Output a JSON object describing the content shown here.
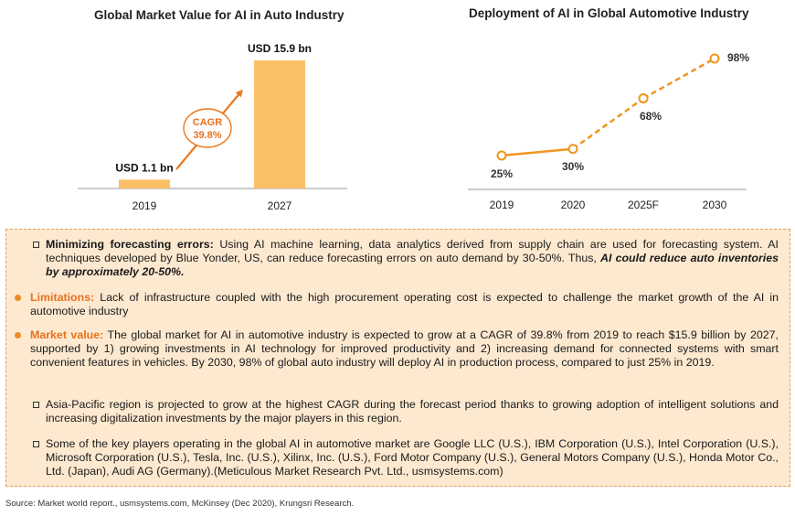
{
  "chart_data": [
    {
      "type": "bar",
      "title": "Global Market Value for AI in Auto Industry",
      "categories": [
        "2019",
        "2027"
      ],
      "values": [
        1.1,
        15.9
      ],
      "value_labels": [
        "USD 1.1 bn",
        "USD 15.9 bn"
      ],
      "unit": "USD bn",
      "annotation": {
        "line1": "CAGR",
        "line2": "39.8%"
      },
      "bar_color": "#fbbf66",
      "ylim": [
        0,
        16.5
      ]
    },
    {
      "type": "line",
      "title": "Deployment of AI in Global Automotive Industry",
      "categories": [
        "2019",
        "2020",
        "2025F",
        "2030"
      ],
      "values": [
        25,
        30,
        68,
        98
      ],
      "value_labels": [
        "25%",
        "30%",
        "68%",
        "98%"
      ],
      "unit": "%",
      "line_color": "#f0951e",
      "solid_segment_until_index": 1,
      "ylim": [
        0,
        100
      ]
    }
  ],
  "info": {
    "b1_label": "Minimizing forecasting errors:",
    "b1_text": " Using AI machine learning, data analytics derived from supply chain are used for forecasting system. AI techniques developed by Blue Yonder, US, can reduce forecasting errors on auto demand by 30-50%. Thus, ",
    "b1_emph": "AI could reduce auto inventories by approximately 20-50%.",
    "b2_label": "Limitations:",
    "b2_text": " Lack of infrastructure coupled with the high procurement operating cost is expected to challenge the market growth of the AI in automotive industry",
    "b3_label": "Market value:",
    "b3_text": " The global market for AI in automotive industry is expected to grow at a CAGR of 39.8% from 2019 to reach $15.9 billion by 2027, supported by 1) growing investments in AI technology for improved productivity and 2) increasing demand for connected systems with smart convenient features in vehicles. By 2030, 98% of global auto industry will deploy AI in production process, compared to just 25% in 2019.",
    "b4_text": "Asia-Pacific region is projected to grow at the highest CAGR during the forecast period thanks to growing adoption of intelligent solutions and increasing digitalization investments by the major players in this region.",
    "b5_text": "Some of the key players operating in the global AI in automotive market are Google LLC (U.S.), IBM Corporation (U.S.), Intel Corporation (U.S.), Microsoft Corporation (U.S.), Tesla, Inc. (U.S.), Xilinx, Inc. (U.S.), Ford Motor Company (U.S.), General Motors Company (U.S.), Honda Motor Co., Ltd. (Japan), Audi AG (Germany).(Meticulous Market Research Pvt. Ltd., usmsystems.com)"
  },
  "source": "Source: Market world report., usmsystems.com, McKinsey (Dec 2020), Krungsri Research."
}
